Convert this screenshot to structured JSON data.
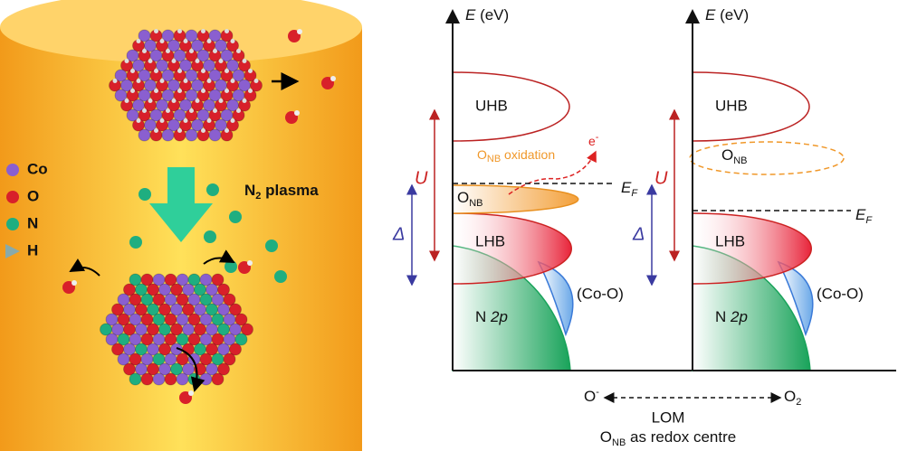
{
  "legend": [
    {
      "label": "Co"
    },
    {
      "label": "O"
    },
    {
      "label": "N"
    },
    {
      "label": "H"
    }
  ],
  "plasma_label": {
    "text": "N",
    "sub": "2",
    "tail": " plasma"
  },
  "oxidation": {
    "text": "O",
    "sub": "NB",
    "tail": " oxidation"
  },
  "electron": {
    "text": "e",
    "sup": "-"
  },
  "diagrams": [
    {
      "axis_label": {
        "italic": "E",
        "rest": " (eV)"
      },
      "uhb": "UHB",
      "lhb": "LHB",
      "n2p": {
        "text": "N ",
        "italic": "2p"
      },
      "coo": "(Co-O)",
      "onb": {
        "text": "O",
        "sub": "NB"
      },
      "fermi": {
        "text": "E",
        "sub": "F"
      },
      "u": "U",
      "delta": "Δ"
    },
    {
      "axis_label": {
        "italic": "E",
        "rest": " (eV)"
      },
      "uhb": "UHB",
      "lhb": "LHB",
      "n2p": {
        "text": "N ",
        "italic": "2p"
      },
      "coo": "(Co-O)",
      "onb": {
        "text": "O",
        "sub": "NB"
      },
      "fermi": {
        "text": "E",
        "sub": "F"
      },
      "u": "U",
      "delta": "Δ"
    }
  ],
  "bottom": {
    "left": {
      "text": "O",
      "sup": "-"
    },
    "right": {
      "text": "O",
      "sub": "2"
    },
    "lom": "LOM",
    "caption": {
      "text": "O",
      "sub": "NB",
      "tail": " as redox centre"
    }
  }
}
